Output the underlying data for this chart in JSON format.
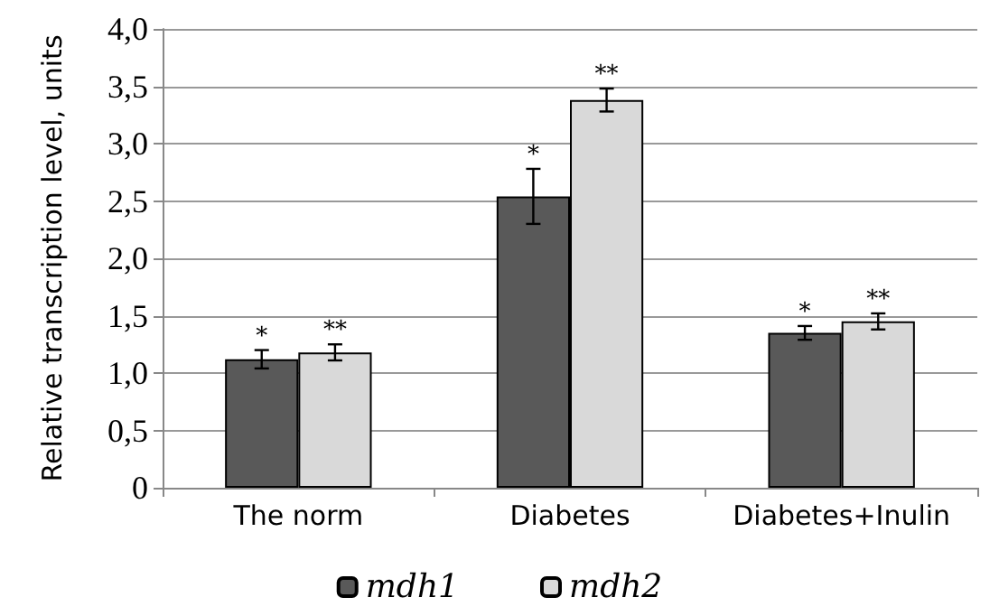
{
  "chart_data": {
    "type": "bar",
    "ylabel": "Relative transcription level, units",
    "categories": [
      "The norm",
      "Diabetes",
      "Diabetes+Inulin"
    ],
    "series": [
      {
        "name": "mdh1",
        "color": "#595959",
        "values": [
          1.12,
          2.54,
          1.35
        ],
        "errors": [
          0.08,
          0.24,
          0.06
        ],
        "value_labels": [
          "*",
          "*",
          "*"
        ]
      },
      {
        "name": "mdh2",
        "color": "#d9d9d9",
        "values": [
          1.18,
          3.38,
          1.45
        ],
        "errors": [
          0.07,
          0.1,
          0.07
        ],
        "value_labels": [
          "**",
          "**",
          "**"
        ]
      }
    ],
    "ylim": [
      0,
      4
    ],
    "yticks": [
      0,
      {
        "value": 0.5,
        "label": "0,5"
      },
      {
        "value": 1,
        "label": "1,0"
      },
      {
        "value": 1.5,
        "label": "1,5"
      },
      {
        "value": 2,
        "label": "2,0"
      },
      {
        "value": 2.5,
        "label": "2,5"
      },
      {
        "value": 3,
        "label": "3,0"
      },
      {
        "value": 3.5,
        "label": "3,5"
      },
      {
        "value": 4,
        "label": "4,0"
      }
    ],
    "grid": "y",
    "legend": "bottom"
  }
}
